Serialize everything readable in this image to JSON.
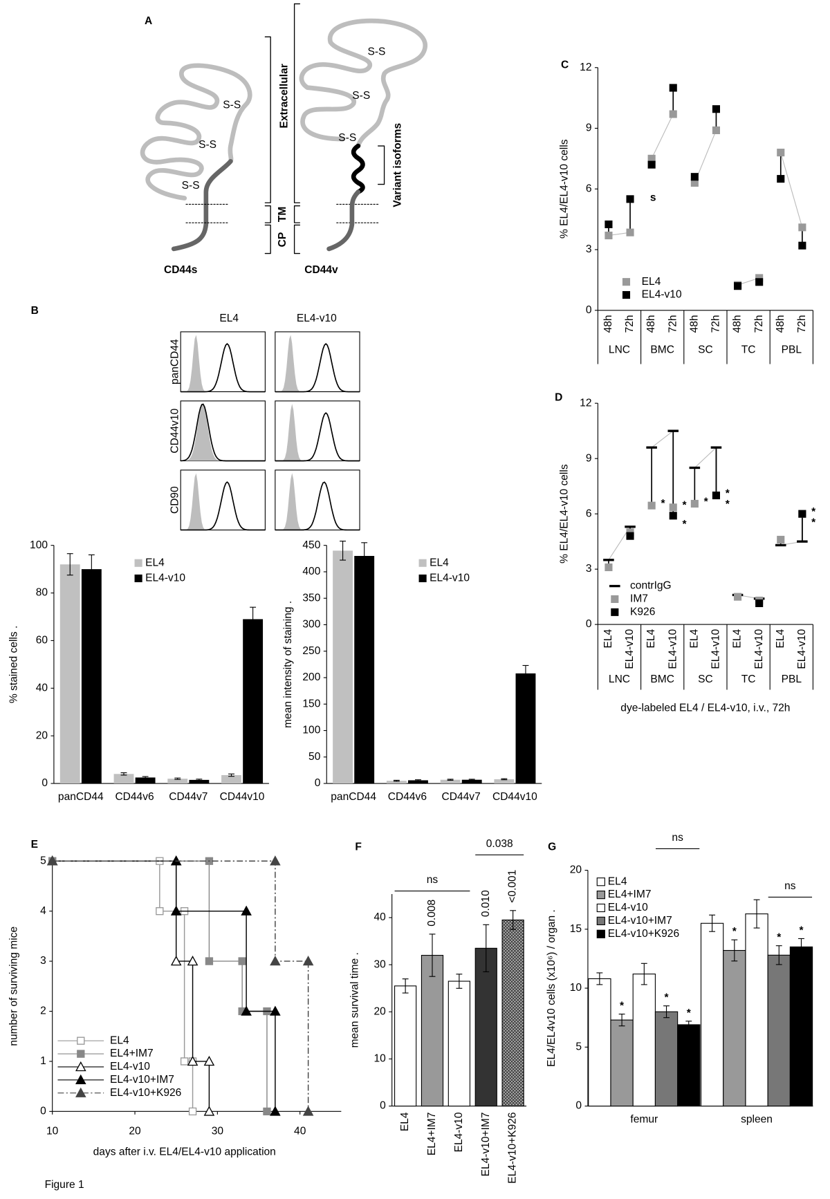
{
  "figure_label": "Figure 1",
  "diagram": {
    "panel": "A",
    "isoforms": [
      "CD44s",
      "CD44v"
    ],
    "bonds": [
      "S-S",
      "S-S",
      "S-S",
      "S-S",
      "S-S",
      "S-S"
    ],
    "regions": [
      "Extracellular",
      "TM",
      "CP"
    ],
    "variant": "Variant isoforms"
  },
  "histograms": {
    "panel": "B",
    "columns": [
      "EL4",
      "EL4-v10"
    ],
    "rows": [
      "panCD44",
      "CD44v10",
      "CD90"
    ]
  },
  "chart_data": [
    {
      "type": "bar",
      "ylabel": "% stained cells .",
      "categories": [
        "panCD44",
        "CD44v6",
        "CD44v7",
        "CD44v10"
      ],
      "series": [
        {
          "name": "EL4",
          "color": "#c0c0c0",
          "values": [
            92,
            4,
            2,
            3.5
          ],
          "errors": [
            4.5,
            0.5,
            0.3,
            0.5
          ]
        },
        {
          "name": "EL4-v10",
          "color": "#000000",
          "values": [
            90,
            2.5,
            1.5,
            69
          ],
          "errors": [
            6,
            0.4,
            0.3,
            5
          ]
        }
      ],
      "ylim": [
        0,
        100
      ],
      "yticks": [
        0,
        20,
        40,
        60,
        80,
        100
      ],
      "legend": "top-center",
      "outline": false
    },
    {
      "type": "bar",
      "ylabel": "mean intensity of staining .",
      "categories": [
        "panCD44",
        "CD44v6",
        "CD44v7",
        "CD44v10"
      ],
      "series": [
        {
          "name": "EL4",
          "color": "#c0c0c0",
          "values": [
            440,
            5,
            7,
            8
          ],
          "errors": [
            18,
            1,
            1,
            1
          ]
        },
        {
          "name": "EL4-v10",
          "color": "#000000",
          "values": [
            430,
            6,
            7,
            208
          ],
          "errors": [
            25,
            1,
            1,
            15
          ]
        }
      ],
      "ylim": [
        0,
        450
      ],
      "yticks": [
        0,
        50,
        100,
        150,
        200,
        250,
        300,
        350,
        400,
        450
      ],
      "legend": "top-center",
      "outline": false
    },
    {
      "type": "dot",
      "panel": "C",
      "ylabel": "% EL4/EL4-v10 cells",
      "annotation": "s",
      "categories": [
        "48h",
        "72h",
        "48h",
        "72h",
        "48h",
        "72h",
        "48h",
        "72h",
        "48h",
        "72h"
      ],
      "groups": [
        "LNC",
        "BMC",
        "SC",
        "TC",
        "PBL"
      ],
      "series": [
        {
          "name": "EL4",
          "color": "#999999",
          "marker": "square",
          "values": [
            3.7,
            3.85,
            7.5,
            9.7,
            6.3,
            8.9,
            1.25,
            1.6,
            7.8,
            4.1
          ]
        },
        {
          "name": "EL4-v10",
          "color": "#000000",
          "marker": "square",
          "values": [
            4.25,
            5.5,
            7.2,
            11,
            6.6,
            9.95,
            1.2,
            1.4,
            6.5,
            3.2
          ]
        }
      ],
      "ylim": [
        0,
        12
      ],
      "yticks": [
        0,
        3,
        6,
        9,
        12
      ],
      "legend": "lower-left"
    },
    {
      "type": "dot",
      "panel": "D",
      "ylabel": "% EL4/EL4-v10 cells",
      "xlabel": "dye-labeled EL4 / EL4-v10, i.v., 72h",
      "categories": [
        "EL4",
        "EL4-v10",
        "EL4",
        "EL4-v10",
        "EL4",
        "EL4-v10",
        "EL4",
        "EL4-v10",
        "EL4",
        "EL4-v10"
      ],
      "groups": [
        "LNC",
        "BMC",
        "SC",
        "TC",
        "PBL"
      ],
      "series": [
        {
          "name": "contrIgG",
          "color": "#000000",
          "marker": "dash",
          "values": [
            3.5,
            5.3,
            9.6,
            10.5,
            8.5,
            9.6,
            1.6,
            1.4,
            4.3,
            4.5
          ]
        },
        {
          "name": "IM7",
          "color": "#999999",
          "marker": "square",
          "values": [
            3.1,
            5.0,
            6.45,
            6.35,
            6.55,
            7.0,
            1.5,
            1.3,
            4.6,
            6.0
          ],
          "significance": [
            null,
            null,
            "*",
            "*",
            "*",
            "*",
            null,
            null,
            null,
            "*"
          ]
        },
        {
          "name": "K926",
          "color": "#000000",
          "marker": "square",
          "values": [
            null,
            4.8,
            null,
            5.9,
            null,
            7.0,
            null,
            1.15,
            null,
            6.0
          ],
          "significance": [
            null,
            null,
            null,
            "*",
            null,
            "*",
            null,
            null,
            null,
            "*"
          ]
        }
      ],
      "ylim": [
        0,
        12
      ],
      "yticks": [
        0,
        3,
        6,
        9,
        12
      ],
      "legend": "lower-left"
    },
    {
      "type": "step",
      "panel": "E",
      "xlabel": "days after i.v. EL4/EL4-v10 application",
      "ylabel": "number of surviving mice",
      "series": [
        {
          "name": "EL4",
          "color": "#999999",
          "marker": "square",
          "filled": false,
          "dash": "solid",
          "x": [
            10,
            23,
            26,
            27
          ],
          "values": [
            5,
            4,
            1,
            0
          ]
        },
        {
          "name": "EL4+IM7",
          "color": "#888888",
          "marker": "square",
          "filled": true,
          "dash": "solid",
          "x": [
            10,
            29,
            33,
            36
          ],
          "values": [
            5,
            3,
            2,
            0
          ]
        },
        {
          "name": "EL4-v10",
          "color": "#000000",
          "marker": "triangle",
          "filled": false,
          "dash": "solid",
          "x": [
            10,
            25,
            27,
            29
          ],
          "values": [
            5,
            3,
            1,
            0
          ]
        },
        {
          "name": "EL4-v10+IM7",
          "color": "#000000",
          "marker": "triangle",
          "filled": true,
          "dash": "solid",
          "x": [
            10,
            25,
            33.5,
            37
          ],
          "values": [
            5,
            4,
            2,
            0
          ]
        },
        {
          "name": "EL4-v10+K926",
          "color": "#444444",
          "marker": "triangle",
          "filled": true,
          "dash": "dash-dot",
          "x": [
            10,
            37,
            41
          ],
          "values": [
            5,
            3,
            0
          ]
        }
      ],
      "xlim": [
        10,
        45
      ],
      "xticks": [
        10,
        20,
        30,
        40
      ],
      "ylim": [
        0,
        5
      ],
      "yticks": [
        0,
        1,
        2,
        3,
        4,
        5
      ],
      "legend": "lower-left"
    },
    {
      "type": "bar",
      "panel": "F",
      "ylabel": "mean survival time .",
      "outline": true,
      "categories": [
        "EL4",
        "EL4+IM7",
        "EL4-v10",
        "EL4-v10+IM7",
        "EL4-v10+K926"
      ],
      "values": [
        25.5,
        32,
        26.5,
        33.5,
        39.5
      ],
      "errors": [
        1.5,
        4.5,
        1.5,
        5,
        2
      ],
      "colors": [
        "#ffffff",
        "#999999",
        "#ffffff",
        "#333333",
        "#ffffff"
      ],
      "hatched": [
        false,
        false,
        false,
        false,
        true
      ],
      "p_labels": [
        null,
        "0.008",
        null,
        "0.010",
        "<0.001"
      ],
      "brackets": [
        "ns",
        "0.038"
      ],
      "ylim": [
        0,
        45
      ],
      "yticks": [
        0,
        10,
        20,
        30,
        40
      ]
    },
    {
      "type": "bar",
      "panel": "G",
      "ylabel": "EL4/EL4v10 cells (x10⁶) / organ .",
      "outline": true,
      "categories": [
        "femur",
        "spleen"
      ],
      "series": [
        {
          "name": "EL4",
          "color": "#ffffff",
          "values": [
            10.8,
            15.5
          ],
          "errors": [
            0.5,
            0.7
          ]
        },
        {
          "name": "EL4+IM7",
          "color": "#999999",
          "values": [
            7.3,
            13.2
          ],
          "errors": [
            0.5,
            0.9
          ],
          "significance": [
            "*",
            "*"
          ]
        },
        {
          "name": "EL4-v10",
          "color": "#ffffff",
          "values": [
            11.2,
            16.3
          ],
          "errors": [
            0.9,
            1.2
          ]
        },
        {
          "name": "EL4-v10+IM7",
          "color": "#777777",
          "values": [
            8,
            12.8
          ],
          "errors": [
            0.5,
            0.8
          ],
          "significance": [
            "*",
            "*"
          ]
        },
        {
          "name": "EL4-v10+K926",
          "color": "#000000",
          "values": [
            6.9,
            13.5
          ],
          "errors": [
            0.3,
            0.7
          ],
          "significance": [
            "*",
            "*"
          ]
        }
      ],
      "brackets": [
        "ns",
        "ns"
      ],
      "ylim": [
        0,
        20
      ],
      "yticks": [
        0,
        5,
        10,
        15,
        20
      ],
      "legend": "top-left"
    }
  ]
}
